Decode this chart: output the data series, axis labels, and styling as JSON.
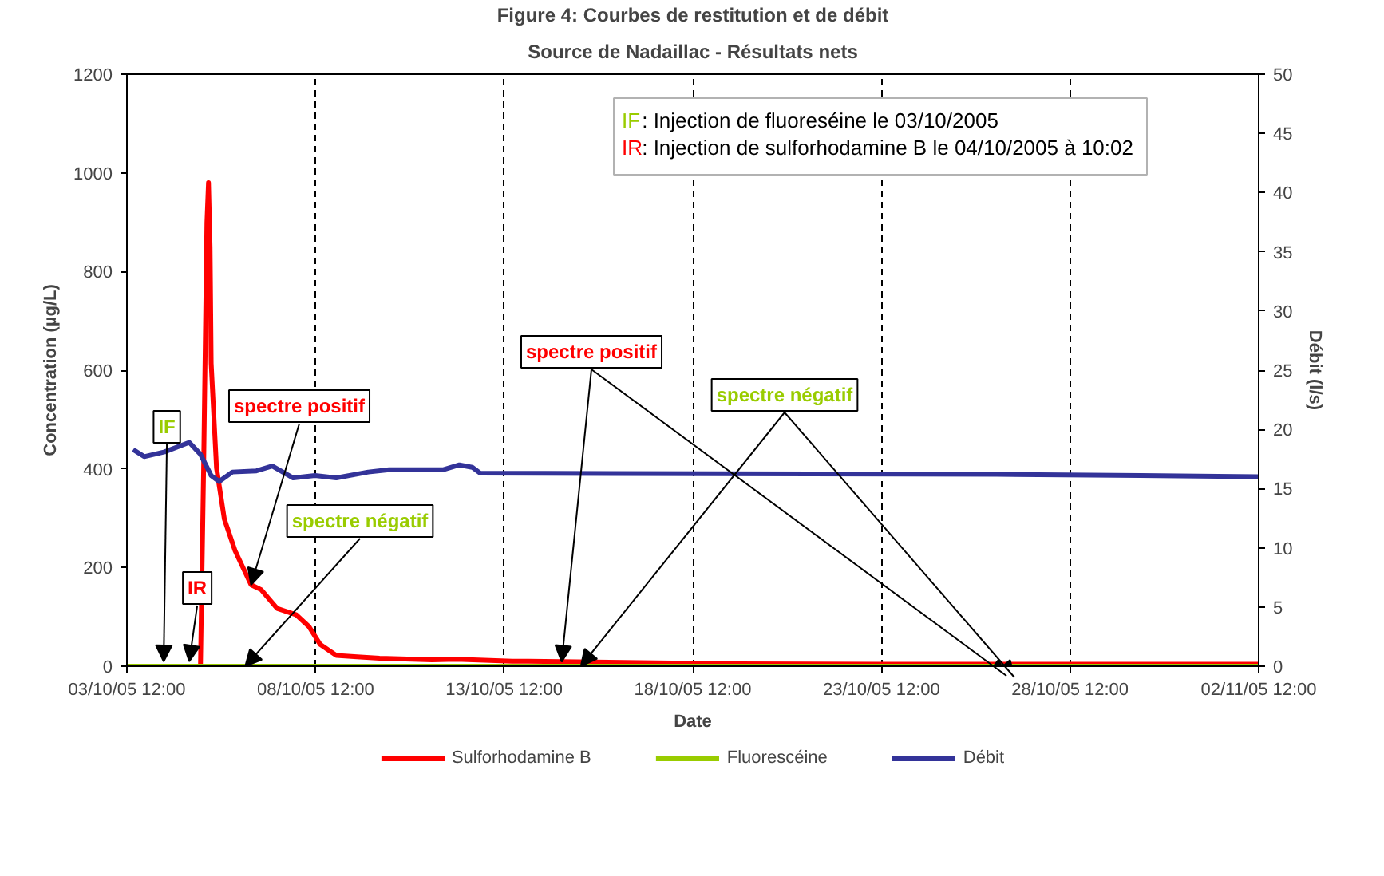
{
  "chart_data": {
    "type": "line",
    "title": "Figure 4: Courbes de restitution et de débit",
    "subtitle": "Source de Nadaillac - Résultats nets",
    "xlabel": "Date",
    "ylabel": "Concentration (µg/L)",
    "y2label": "Débit (l/s)",
    "xlim": [
      "2005-10-03T12:00",
      "2005-11-02T12:00"
    ],
    "xticks": [
      {
        "value": "2005-10-03T12:00",
        "label": "03/10/05 12:00"
      },
      {
        "value": "2005-10-08T12:00",
        "label": "08/10/05 12:00"
      },
      {
        "value": "2005-10-13T12:00",
        "label": "13/10/05 12:00"
      },
      {
        "value": "2005-10-18T12:00",
        "label": "18/10/05 12:00"
      },
      {
        "value": "2005-10-23T12:00",
        "label": "23/10/05 12:00"
      },
      {
        "value": "2005-10-28T12:00",
        "label": "28/10/05 12:00"
      },
      {
        "value": "2005-11-02T12:00",
        "label": "02/11/05 12:00"
      }
    ],
    "ylim": [
      0,
      1200
    ],
    "yticks": [
      0,
      200,
      400,
      600,
      800,
      1000,
      1200
    ],
    "y2lim": [
      0,
      50
    ],
    "y2ticks": [
      0,
      5,
      10,
      15,
      20,
      25,
      30,
      35,
      40,
      45,
      50
    ],
    "grid": "x",
    "legend": "bottom",
    "marker": "none",
    "line_style": "solid",
    "series": [
      {
        "name": "Sulforhodamine B",
        "color": "#ff0000",
        "x": [
          "2005-10-03T12:00",
          "2005-10-05T10:48",
          "2005-10-05T12:48",
          "2005-10-05T14:54",
          "2005-10-05T15:54",
          "2005-10-05T16:54",
          "2005-10-05T17:36",
          "2005-10-05T21:00",
          "2005-10-06T02:00",
          "2005-10-06T08:48",
          "2005-10-06T19:00",
          "2005-10-07T01:24",
          "2005-10-07T11:36",
          "2005-10-07T23:48",
          "2005-10-08T07:54",
          "2005-10-08T15:00",
          "2005-10-09T01:12",
          "2005-10-09T14:24",
          "2005-10-10T04:42",
          "2005-10-11T14:12",
          "2005-10-12T05:30",
          "2005-10-13T17:06",
          "2005-10-14T03:18",
          "2005-10-19T15:30",
          "2005-10-23T11:00",
          "2005-11-02T12:00"
        ],
        "values": [
          0,
          0,
          400,
          900,
          980,
          850,
          614,
          402,
          298,
          234,
          165,
          155,
          117,
          104,
          80,
          44,
          22,
          19,
          16,
          13,
          14,
          10,
          10,
          5,
          4,
          4
        ]
      },
      {
        "name": "Fluorescéine",
        "color": "#99cc00",
        "x": [
          "2005-10-03T12:00",
          "2005-11-02T12:00"
        ],
        "values": [
          0,
          0
        ]
      },
      {
        "name": "Débit",
        "color": "#333399",
        "axis": "y2",
        "x": [
          "2005-10-03T16:00",
          "2005-10-03T23:00",
          "2005-10-04T12:00",
          "2005-10-05T03:40",
          "2005-10-05T10:48",
          "2005-10-05T17:36",
          "2005-10-05T22:42",
          "2005-10-06T07:06",
          "2005-10-06T22:24",
          "2005-10-07T08:30",
          "2005-10-07T21:48",
          "2005-10-08T11:42",
          "2005-10-09T01:12",
          "2005-10-09T21:36",
          "2005-10-10T10:48",
          "2005-10-11T21:24",
          "2005-10-12T07:30",
          "2005-10-12T15:42",
          "2005-10-12T20:48",
          "2005-10-26T13:12",
          "2005-10-30T08:48",
          "2005-11-02T12:00"
        ],
        "values": [
          18.3,
          17.7,
          18.1,
          18.9,
          17.9,
          16.1,
          15.6,
          16.4,
          16.5,
          16.9,
          15.9,
          16.1,
          15.9,
          16.4,
          16.6,
          16.6,
          17.0,
          16.8,
          16.3,
          16.2,
          16.1,
          16.0
        ]
      }
    ],
    "annotations": [
      "IF: Injection de fluoreséine le 03/10/2005",
      "IR: Injection de sulforhodamine B le 04/10/2005 à 10:02",
      {
        "text": "IF",
        "x": "2005-10-04T11:24",
        "y": 0
      },
      {
        "text": "IR",
        "x": "2005-10-05T03:40",
        "y": 0
      },
      {
        "text": "spectre positif",
        "x": "2005-10-06T19:00",
        "y": 165
      },
      {
        "text": "spectre négatif",
        "x": "2005-10-06T15:18",
        "y": 0
      },
      {
        "text": "spectre positif",
        "x": "2005-10-15T00:36",
        "y": 9
      },
      {
        "text": "spectre négatif",
        "x": "2005-10-15T12:48",
        "y": 0
      }
    ]
  }
}
